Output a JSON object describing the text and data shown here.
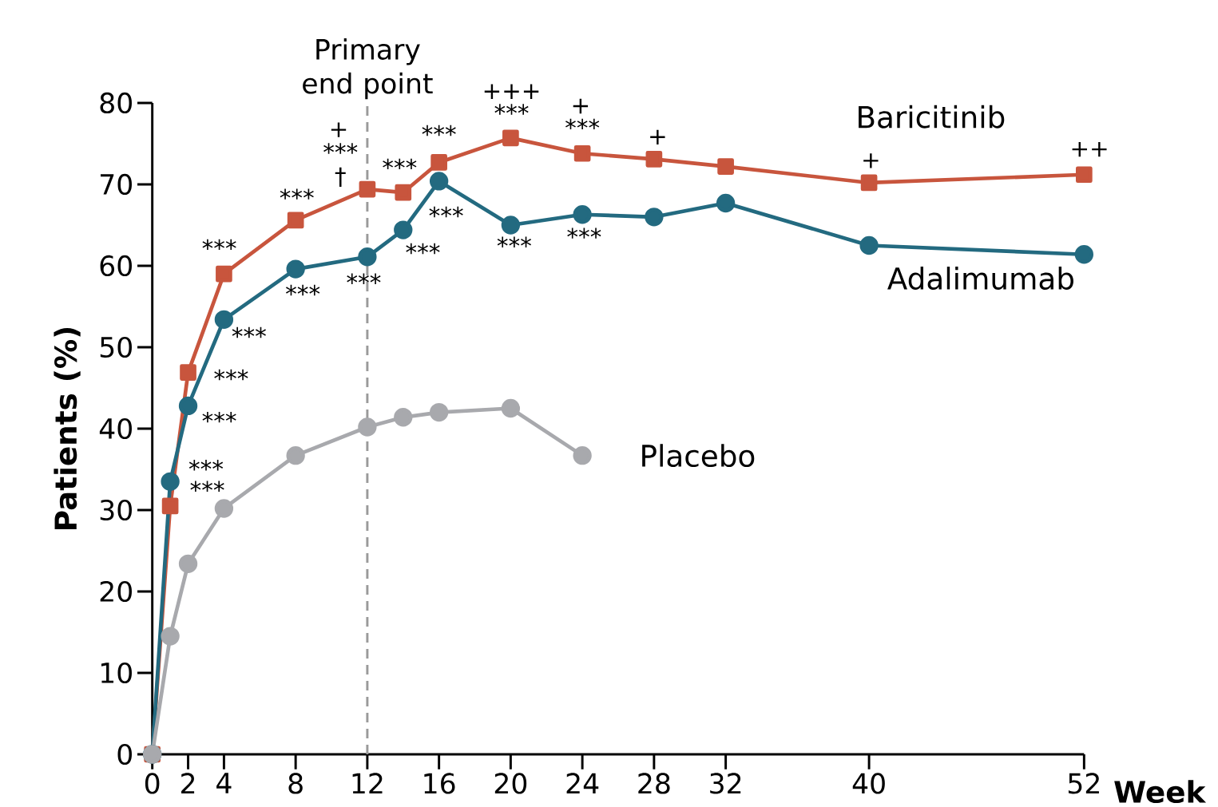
{
  "chart_data": {
    "type": "line",
    "xlabel": "Week",
    "ylabel": "Patients (%)",
    "xlim": [
      0,
      52
    ],
    "ylim": [
      0,
      80
    ],
    "xticks": [
      0,
      2,
      4,
      8,
      12,
      16,
      20,
      24,
      28,
      32,
      40,
      52
    ],
    "yticks": [
      0,
      10,
      20,
      30,
      40,
      50,
      60,
      70,
      80
    ],
    "grid": false,
    "line_style": "solid",
    "series": [
      {
        "name": "Baricitinib",
        "color": "#c8553d",
        "marker": "square",
        "x": [
          0,
          1,
          2,
          4,
          8,
          12,
          14,
          16,
          20,
          24,
          28,
          32,
          40,
          52
        ],
        "values": [
          0,
          30.5,
          46.9,
          59.0,
          65.6,
          69.4,
          69.0,
          72.7,
          75.7,
          73.8,
          73.1,
          72.2,
          70.2,
          71.2
        ]
      },
      {
        "name": "Adalimumab",
        "color": "#236a80",
        "marker": "circle",
        "x": [
          0,
          1,
          2,
          4,
          8,
          12,
          14,
          16,
          20,
          24,
          28,
          32,
          40,
          52
        ],
        "values": [
          0,
          33.5,
          42.8,
          53.4,
          59.6,
          61.1,
          64.4,
          70.4,
          65.0,
          66.3,
          66.0,
          67.7,
          62.5,
          61.4
        ]
      },
      {
        "name": "Placebo",
        "color": "#a8a9ad",
        "marker": "circle",
        "x": [
          0,
          1,
          2,
          4,
          8,
          12,
          14,
          16,
          20,
          24
        ],
        "values": [
          0,
          14.5,
          23.4,
          30.2,
          36.7,
          40.2,
          41.4,
          42.0,
          42.5,
          36.7
        ]
      }
    ],
    "ref_lines": [
      {
        "axis": "x",
        "value": 12,
        "label": "Primary end point",
        "color": "#9a9a9a",
        "line_style": "dashed"
      }
    ],
    "annotations": [
      "***",
      "***",
      "+",
      "***",
      "†",
      "***",
      "***",
      "+++",
      "***",
      "+",
      "***",
      "+",
      "+",
      "++",
      "***",
      "***",
      "***",
      "***",
      "***",
      "***",
      "***",
      "***",
      "***",
      "***",
      "***"
    ]
  }
}
